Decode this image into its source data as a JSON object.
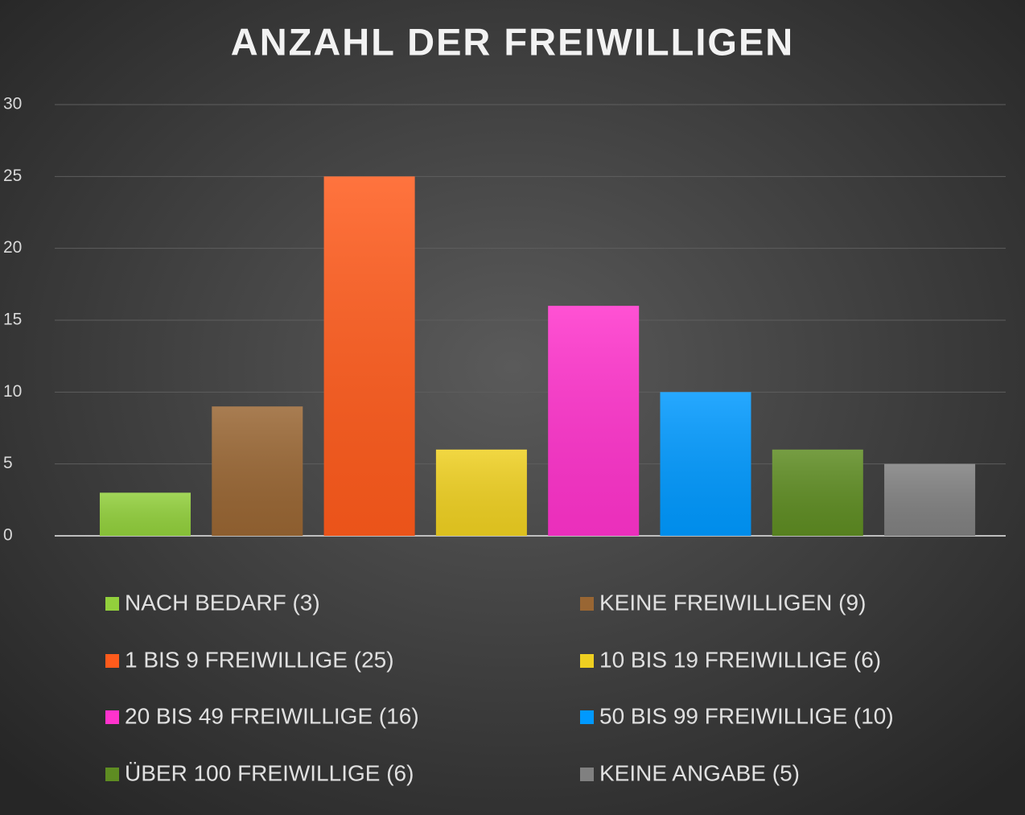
{
  "chart_data": {
    "type": "bar",
    "title": "ANZAHL DER FREIWILLIGEN",
    "series": [
      {
        "name": "NACH BEDARF (3)",
        "color": "#92d03c",
        "values": [
          3
        ]
      },
      {
        "name": "KEINE FREIWILLIGEN (9)",
        "color": "#996633",
        "values": [
          9
        ]
      },
      {
        "name": "1 BIS 9 FREIWILLIGE (25)",
        "color": "#ff5b1c",
        "values": [
          25
        ]
      },
      {
        "name": "10 BIS 19 FREIWILLIGE (6)",
        "color": "#efd021",
        "values": [
          6
        ]
      },
      {
        "name": "20 BIS 49 FREIWILLIGE (16)",
        "color": "#ff33cc",
        "values": [
          16
        ]
      },
      {
        "name": "50 BIS 99 FREIWILLIGE (10)",
        "color": "#0099ff",
        "values": [
          10
        ]
      },
      {
        "name": "ÜBER 100 FREIWILLIGE (6)",
        "color": "#5e8c22",
        "values": [
          6
        ]
      },
      {
        "name": "KEINE ANGABE (5)",
        "color": "#808080",
        "values": [
          5
        ]
      }
    ],
    "ylim": [
      0,
      30
    ],
    "yticks": [
      0,
      5,
      10,
      15,
      20,
      25,
      30
    ],
    "grid": true,
    "legend": "bottom"
  }
}
